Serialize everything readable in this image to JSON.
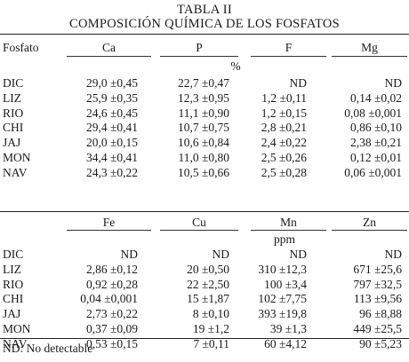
{
  "caption": {
    "label": "TABLA II",
    "title": "COMPOSICIÓN QUÍMICA DE LOS FOSFATOS"
  },
  "table1": {
    "row_header": "Fosfato",
    "columns": [
      "Ca",
      "P",
      "F",
      "Mg"
    ],
    "unit": "%",
    "rows": [
      {
        "name": "DIC",
        "values": [
          "29,0 ±0,45",
          "22,7 ±0,47",
          "ND",
          "ND"
        ]
      },
      {
        "name": "LIZ",
        "values": [
          "25,9 ±0,35",
          "12,3 ±0,95",
          "1,2 ±0,11",
          "0,14 ±0,02"
        ]
      },
      {
        "name": "RIO",
        "values": [
          "24,6 ±0,45",
          "11,1 ±0,90",
          "1,2 ±0,15",
          "0,08 ±0,001"
        ]
      },
      {
        "name": "CHI",
        "values": [
          "29,4 ±0,41",
          "10,7 ±0,75",
          "2,8 ±0,21",
          "0,86 ±0,10"
        ]
      },
      {
        "name": "JAJ",
        "values": [
          "20,0 ±0,15",
          "10,6 ±0,84",
          "2,4 ±0,22",
          "2,38 ±0,21"
        ]
      },
      {
        "name": "MON",
        "values": [
          "34,4 ±0,41",
          "11,0 ±0,80",
          "2,5 ±0,26",
          "0,12 ±0,01"
        ]
      },
      {
        "name": "NAV",
        "values": [
          "24,3 ±0,22",
          "10,5 ±0,66",
          "2,5 ±0,28",
          "0,06 ±0,001"
        ]
      }
    ]
  },
  "table2": {
    "columns": [
      "Fe",
      "Cu",
      "Mn",
      "Zn"
    ],
    "unit": "ppm",
    "rows": [
      {
        "name": "DIC",
        "values": [
          "ND",
          "ND",
          "ND",
          "ND"
        ]
      },
      {
        "name": "LIZ",
        "values": [
          "2,86 ±0,12",
          "20 ±0,50",
          "310 ±12,3",
          "671 ±25,6"
        ]
      },
      {
        "name": "RIO",
        "values": [
          "0,92 ±0,28",
          "22 ±2,50",
          "100 ±3,4",
          "797 ±32,5"
        ]
      },
      {
        "name": "CHI",
        "values": [
          "0,04 ±0,001",
          "15 ±1,87",
          "102 ±7,75",
          "113 ±9,56"
        ]
      },
      {
        "name": "JAJ",
        "values": [
          "2,73 ±0,22",
          "8 ±0,10",
          "393 ±19,8",
          "96 ±8,88"
        ]
      },
      {
        "name": "MON",
        "values": [
          "0,37 ±0,09",
          "19 ±1,2",
          "39 ±1,3",
          "449 ±25,5"
        ]
      },
      {
        "name": "NAV",
        "values": [
          "0,53 ±0,15",
          "7 ±0,11",
          "60 ±4,12",
          "90 ±5,23"
        ]
      }
    ]
  },
  "footnote": "ND: No detectable"
}
